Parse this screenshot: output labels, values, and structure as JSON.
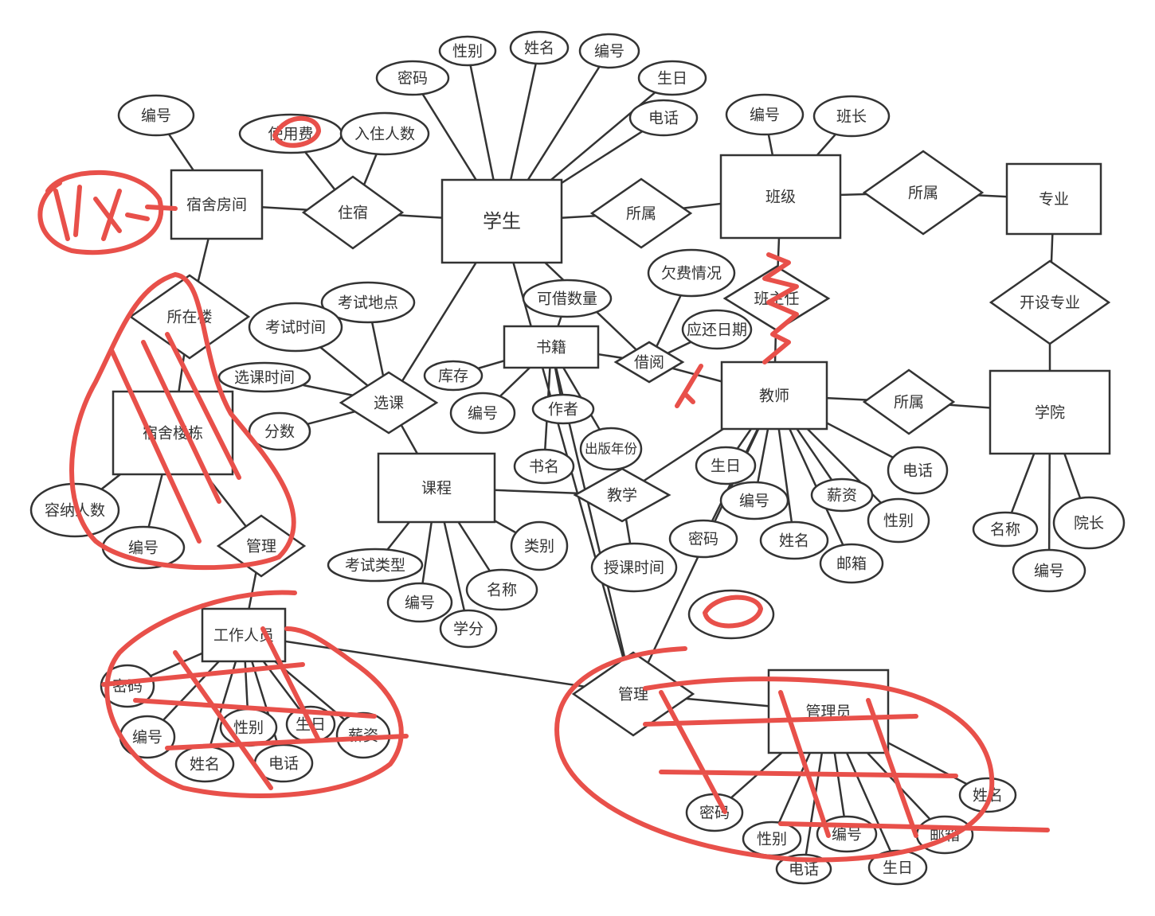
{
  "nodes": [
    {
      "label": "宿舍房间"
    },
    {
      "label": "学生"
    },
    {
      "label": "班级"
    },
    {
      "label": "专业"
    },
    {
      "label": "学院"
    },
    {
      "label": "教师"
    },
    {
      "label": "书籍"
    },
    {
      "label": "课程"
    },
    {
      "label": "宿舍楼栋"
    },
    {
      "label": "工作人员"
    },
    {
      "label": "管理员"
    },
    {
      "label": "住宿"
    },
    {
      "label": "所属"
    },
    {
      "label": "所属"
    },
    {
      "label": "开设专业"
    },
    {
      "label": "班主任"
    },
    {
      "label": "借阅"
    },
    {
      "label": "所属"
    },
    {
      "label": "选课"
    },
    {
      "label": "教学"
    },
    {
      "label": "所在楼"
    },
    {
      "label": "管理"
    },
    {
      "label": "管理"
    },
    {
      "label": "编号"
    },
    {
      "label": "使用费"
    },
    {
      "label": "入住人数"
    },
    {
      "label": "密码"
    },
    {
      "label": "性别"
    },
    {
      "label": "姓名"
    },
    {
      "label": "编号"
    },
    {
      "label": "生日"
    },
    {
      "label": "电话"
    },
    {
      "label": "编号"
    },
    {
      "label": "班长"
    },
    {
      "label": "欠费情况"
    },
    {
      "label": "可借数量"
    },
    {
      "label": "应还日期"
    },
    {
      "label": "考试地点"
    },
    {
      "label": "考试时间"
    },
    {
      "label": "选课时间"
    },
    {
      "label": "分数"
    },
    {
      "label": "库存"
    },
    {
      "label": "编号"
    },
    {
      "label": "作者"
    },
    {
      "label": "出版年份"
    },
    {
      "label": "书名"
    },
    {
      "label": "生日"
    },
    {
      "label": "编号"
    },
    {
      "label": "密码"
    },
    {
      "label": "姓名"
    },
    {
      "label": "薪资"
    },
    {
      "label": "性别"
    },
    {
      "label": "电话"
    },
    {
      "label": "邮箱"
    },
    {
      "label": "名称"
    },
    {
      "label": "编号"
    },
    {
      "label": "院长"
    },
    {
      "label": "考试类型"
    },
    {
      "label": "编号"
    },
    {
      "label": "学分"
    },
    {
      "label": "名称"
    },
    {
      "label": "类别"
    },
    {
      "label": "授课时间"
    },
    {
      "label": "容纳人数"
    },
    {
      "label": "编号"
    },
    {
      "label": "密码"
    },
    {
      "label": "编号"
    },
    {
      "label": "姓名"
    },
    {
      "label": "性别"
    },
    {
      "label": "电话"
    },
    {
      "label": "生日"
    },
    {
      "label": "薪资"
    },
    {
      "label": "密码"
    },
    {
      "label": "性别"
    },
    {
      "label": "电话"
    },
    {
      "label": "编号"
    },
    {
      "label": "生日"
    },
    {
      "label": "邮箱"
    },
    {
      "label": "姓名"
    }
  ]
}
